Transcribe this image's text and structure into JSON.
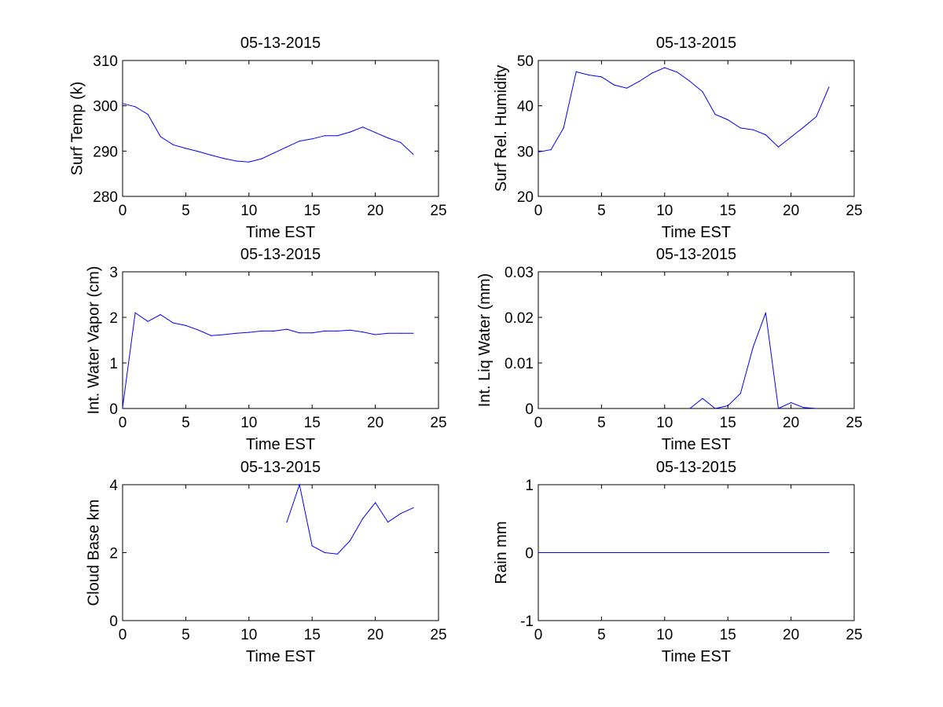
{
  "chart_data": [
    {
      "type": "line",
      "title": "05-13-2015",
      "xlabel": "Time EST",
      "ylabel": "Surf Temp (k)",
      "xlim": [
        0,
        25
      ],
      "ylim": [
        280,
        310
      ],
      "xticks": [
        0,
        5,
        10,
        15,
        20,
        25
      ],
      "yticks": [
        280,
        290,
        300,
        310
      ],
      "series": [
        {
          "name": "Surf Temp",
          "color": "#0000ff",
          "x": [
            0,
            1,
            2,
            3,
            4,
            5,
            6,
            7,
            8,
            9,
            10,
            11,
            12,
            13,
            14,
            15,
            16,
            17,
            18,
            19,
            20,
            21,
            22,
            23
          ],
          "values": [
            300.5,
            299.8,
            298.1,
            293.2,
            291.4,
            290.6,
            289.9,
            289.1,
            288.4,
            287.8,
            287.6,
            288.3,
            289.6,
            290.9,
            292.2,
            292.7,
            293.4,
            293.4,
            294.2,
            295.3,
            294.1,
            292.9,
            291.9,
            289.3
          ]
        }
      ]
    },
    {
      "type": "line",
      "title": "05-13-2015",
      "xlabel": "Time EST",
      "ylabel": "Surf Rel. Humidity",
      "xlim": [
        0,
        25
      ],
      "ylim": [
        20,
        50
      ],
      "xticks": [
        0,
        5,
        10,
        15,
        20,
        25
      ],
      "yticks": [
        20,
        30,
        40,
        50
      ],
      "series": [
        {
          "name": "Surf Rel. Humidity",
          "color": "#0000ff",
          "x": [
            0,
            1,
            2,
            3,
            4,
            5,
            6,
            7,
            8,
            9,
            10,
            11,
            12,
            13,
            14,
            15,
            16,
            17,
            18,
            19,
            20,
            21,
            22,
            23
          ],
          "values": [
            29.8,
            30.3,
            35.1,
            47.5,
            46.8,
            46.4,
            44.6,
            43.9,
            45.4,
            47.2,
            48.4,
            47.4,
            45.4,
            43.1,
            38.1,
            36.9,
            35.1,
            34.7,
            33.6,
            30.9,
            33.1,
            35.3,
            37.6,
            44.1
          ]
        }
      ]
    },
    {
      "type": "line",
      "title": "05-13-2015",
      "xlabel": "Time EST",
      "ylabel": "Int. Water Vapor (cm)",
      "xlim": [
        0,
        25
      ],
      "ylim": [
        0,
        3
      ],
      "xticks": [
        0,
        5,
        10,
        15,
        20,
        25
      ],
      "yticks": [
        0,
        1,
        2,
        3
      ],
      "series": [
        {
          "name": "Int. Water Vapor",
          "color": "#0000ff",
          "x": [
            0,
            1,
            2,
            3,
            4,
            5,
            6,
            7,
            8,
            9,
            10,
            11,
            12,
            13,
            14,
            15,
            16,
            17,
            18,
            19,
            20,
            21,
            22,
            23
          ],
          "values": [
            0.02,
            2.1,
            1.91,
            2.06,
            1.88,
            1.82,
            1.72,
            1.6,
            1.62,
            1.65,
            1.67,
            1.7,
            1.7,
            1.74,
            1.66,
            1.66,
            1.7,
            1.7,
            1.72,
            1.68,
            1.62,
            1.65,
            1.65,
            1.65
          ]
        }
      ]
    },
    {
      "type": "line",
      "title": "05-13-2015",
      "xlabel": "Time EST",
      "ylabel": "Int. Liq Water (mm)",
      "xlim": [
        0,
        25
      ],
      "ylim": [
        0,
        0.03
      ],
      "xticks": [
        0,
        5,
        10,
        15,
        20,
        25
      ],
      "yticks": [
        0,
        0.01,
        0.02,
        0.03
      ],
      "series": [
        {
          "name": "Int. Liq Water",
          "color": "#0000ff",
          "x": [
            12,
            13,
            14,
            15,
            16,
            17,
            18,
            19,
            20,
            21,
            22
          ],
          "values": [
            0.0,
            0.0022,
            0.0,
            0.0006,
            0.0033,
            0.0135,
            0.021,
            0.0,
            0.0013,
            0.0002,
            0.0
          ]
        }
      ]
    },
    {
      "type": "line",
      "title": "05-13-2015",
      "xlabel": "Time EST",
      "ylabel": "Cloud Base km",
      "xlim": [
        0,
        25
      ],
      "ylim": [
        0,
        4
      ],
      "xticks": [
        0,
        5,
        10,
        15,
        20,
        25
      ],
      "yticks": [
        0,
        2,
        4
      ],
      "series": [
        {
          "name": "Cloud Base",
          "color": "#0000ff",
          "x": [
            13,
            14,
            15,
            16,
            17,
            18,
            19,
            20,
            21,
            22,
            23
          ],
          "values": [
            2.9,
            4.0,
            2.2,
            2.0,
            1.96,
            2.35,
            3.0,
            3.47,
            2.9,
            3.15,
            3.32
          ]
        }
      ]
    },
    {
      "type": "line",
      "title": "05-13-2015",
      "xlabel": "Time EST",
      "ylabel": "Rain mm",
      "xlim": [
        0,
        25
      ],
      "ylim": [
        -1,
        1
      ],
      "xticks": [
        0,
        5,
        10,
        15,
        20,
        25
      ],
      "yticks": [
        -1,
        0,
        1
      ],
      "series": [
        {
          "name": "Rain",
          "color": "#0000ff",
          "x": [
            0,
            23
          ],
          "values": [
            0,
            0
          ]
        }
      ]
    }
  ]
}
